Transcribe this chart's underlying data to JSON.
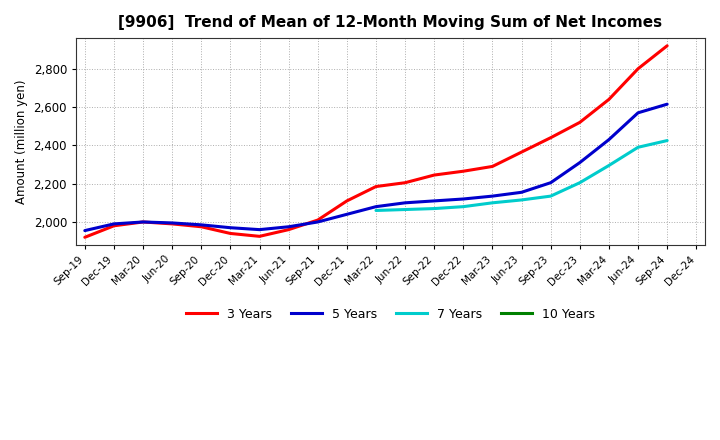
{
  "title": "[9906]  Trend of Mean of 12-Month Moving Sum of Net Incomes",
  "ylabel": "Amount (million yen)",
  "background_color": "#ffffff",
  "plot_bg_color": "#ffffff",
  "grid_color": "#999999",
  "x_labels": [
    "Sep-19",
    "Dec-19",
    "Mar-20",
    "Jun-20",
    "Sep-20",
    "Dec-20",
    "Mar-21",
    "Jun-21",
    "Sep-21",
    "Dec-21",
    "Mar-22",
    "Jun-22",
    "Sep-22",
    "Dec-22",
    "Mar-23",
    "Jun-23",
    "Sep-23",
    "Dec-23",
    "Mar-24",
    "Jun-24",
    "Sep-24",
    "Dec-24"
  ],
  "y3": [
    1920,
    1980,
    2000,
    1990,
    1975,
    1940,
    1925,
    1960,
    2010,
    2110,
    2185,
    2205,
    2245,
    2265,
    2290,
    2365,
    2440,
    2520,
    2640,
    2800,
    2920,
    null
  ],
  "y5": [
    1955,
    1990,
    2000,
    1995,
    1985,
    1970,
    1960,
    1975,
    2000,
    2040,
    2080,
    2100,
    2110,
    2120,
    2135,
    2155,
    2205,
    2310,
    2430,
    2570,
    2615,
    null
  ],
  "y7": [
    null,
    null,
    null,
    null,
    null,
    null,
    null,
    null,
    null,
    null,
    2060,
    2065,
    2070,
    2080,
    2100,
    2115,
    2135,
    2205,
    2295,
    2390,
    2425,
    null
  ],
  "y10": [
    null,
    null,
    null,
    null,
    null,
    null,
    null,
    null,
    null,
    null,
    null,
    null,
    null,
    null,
    null,
    null,
    null,
    null,
    null,
    null,
    null,
    null
  ],
  "colors": {
    "3 Years": "#ff0000",
    "5 Years": "#0000cc",
    "7 Years": "#00cccc",
    "10 Years": "#008000"
  },
  "ylim": [
    1880,
    2960
  ],
  "yticks": [
    2000,
    2200,
    2400,
    2600,
    2800
  ],
  "title_fontsize": 11,
  "legend_labels": [
    "3 Years",
    "5 Years",
    "7 Years",
    "10 Years"
  ]
}
